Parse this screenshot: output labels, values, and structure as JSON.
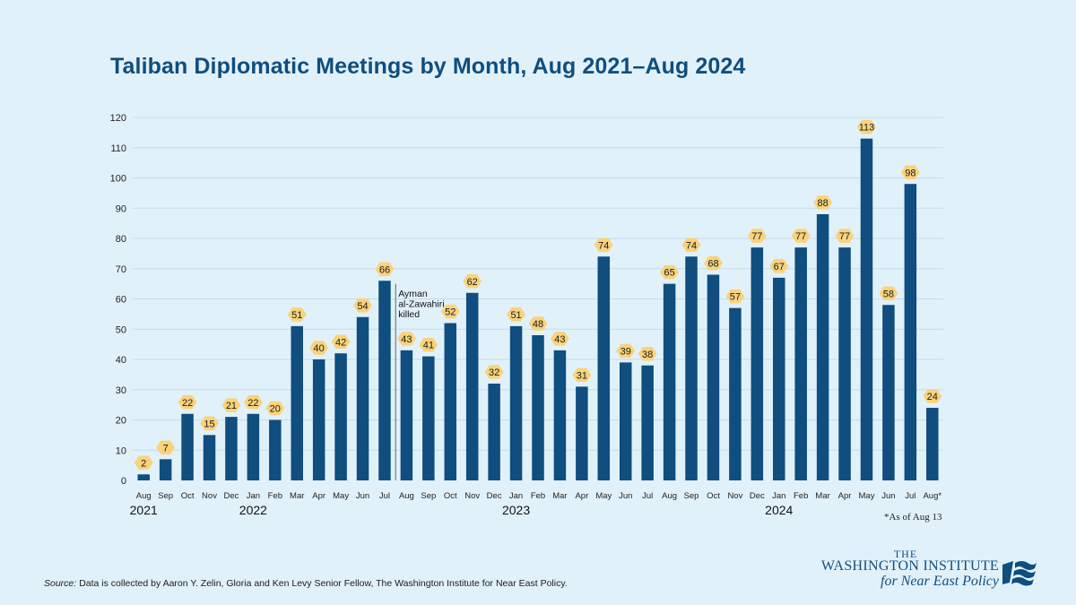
{
  "chart_data": {
    "type": "bar",
    "title": "Taliban Diplomatic Meetings by Month, Aug 2021–Aug 2024",
    "categories": [
      "Aug",
      "Sep",
      "Oct",
      "Nov",
      "Dec",
      "Jan",
      "Feb",
      "Mar",
      "Apr",
      "May",
      "Jun",
      "Jul",
      "Aug",
      "Sep",
      "Oct",
      "Nov",
      "Dec",
      "Jan",
      "Feb",
      "Mar",
      "Apr",
      "May",
      "Jun",
      "Jul",
      "Aug",
      "Sep",
      "Oct",
      "Nov",
      "Dec",
      "Jan",
      "Feb",
      "Mar",
      "Apr",
      "May",
      "Jun",
      "Jul",
      "Aug*"
    ],
    "values": [
      2,
      7,
      22,
      15,
      21,
      22,
      20,
      51,
      40,
      42,
      54,
      66,
      43,
      41,
      52,
      62,
      32,
      51,
      48,
      43,
      31,
      74,
      39,
      38,
      65,
      74,
      68,
      57,
      77,
      67,
      77,
      88,
      77,
      113,
      58,
      98,
      24
    ],
    "year_labels": [
      {
        "label": "2021",
        "category_index": 0
      },
      {
        "label": "2022",
        "category_index": 5
      },
      {
        "label": "2023",
        "category_index": 17
      },
      {
        "label": "2024",
        "category_index": 29
      }
    ],
    "ylim": [
      0,
      120
    ],
    "yticks": [
      0,
      10,
      20,
      30,
      40,
      50,
      60,
      70,
      80,
      90,
      100,
      110,
      120
    ],
    "grid": true,
    "annotation": {
      "lines": [
        "Ayman",
        "al-Zawahiri",
        "killed"
      ],
      "between_category_index": [
        11,
        12
      ]
    },
    "colors": {
      "bar": "#0f4e7e",
      "label_badge": "#f9d37c",
      "grid": "#c3dcea",
      "title": "#0f4e7e"
    }
  },
  "footnote": "*As of Aug 13",
  "source": {
    "label": "Source:",
    "text": "Data is collected by Aaron Y. Zelin, Gloria and Ken Levy Senior Fellow, The Washington Institute for Near East Policy."
  },
  "logo": {
    "line1": "THE",
    "line2": "WASHINGTON INSTITUTE",
    "line3": "for Near East Policy",
    "icon": "flag-wave-icon"
  }
}
